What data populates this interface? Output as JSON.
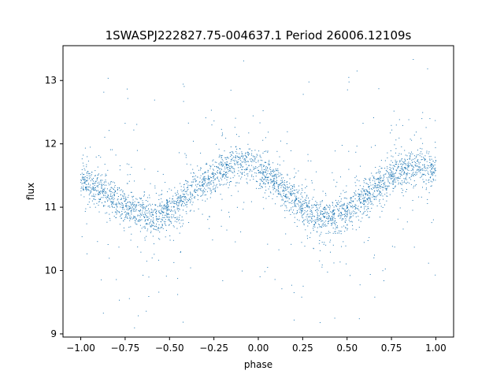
{
  "chart_data": {
    "type": "scatter",
    "title": "1SWASPJ222827.75-004637.1 Period 26006.12109s",
    "xlabel": "phase",
    "ylabel": "flux",
    "xlim": [
      -1.1,
      1.1
    ],
    "ylim": [
      8.95,
      13.55
    ],
    "xticks": [
      -1.0,
      -0.75,
      -0.5,
      -0.25,
      0.0,
      0.25,
      0.5,
      0.75,
      1.0
    ],
    "xtick_labels": [
      "−1.00",
      "−0.75",
      "−0.50",
      "−0.25",
      "0.00",
      "0.25",
      "0.50",
      "0.75",
      "1.00"
    ],
    "yticks": [
      9,
      10,
      11,
      12,
      13
    ],
    "ytick_labels": [
      "9",
      "10",
      "11",
      "12",
      "13"
    ],
    "grid": false,
    "legend": "none",
    "point_color": "#1f77b4",
    "series": [
      {
        "x": [
          -1.0,
          -0.9,
          -0.8,
          -0.7,
          -0.6,
          -0.5,
          -0.4,
          -0.3,
          -0.2,
          -0.1,
          0.0,
          0.1,
          0.2,
          0.3,
          0.4,
          0.5,
          0.6,
          0.7,
          0.8,
          0.9,
          1.0
        ],
        "y": [
          11.45,
          11.3,
          11.1,
          10.95,
          10.85,
          10.95,
          11.15,
          11.4,
          11.6,
          11.7,
          11.6,
          11.4,
          11.1,
          10.9,
          10.82,
          10.95,
          11.15,
          11.4,
          11.6,
          11.65,
          11.6
        ]
      }
    ]
  }
}
